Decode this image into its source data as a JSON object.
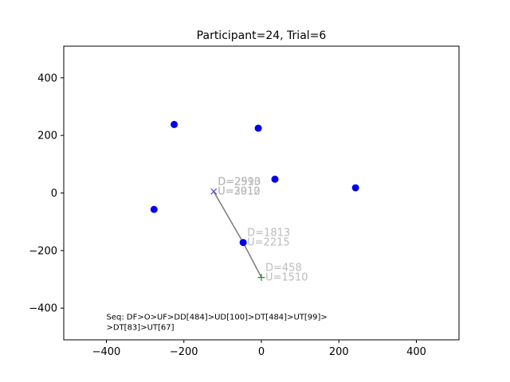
{
  "chart_data": {
    "type": "scatter",
    "title": "Participant=24, Trial=6",
    "xlabel": "",
    "ylabel": "",
    "xlim": [
      -510,
      510
    ],
    "ylim": [
      -510,
      510
    ],
    "xticks": [
      -400,
      -200,
      0,
      200,
      400
    ],
    "yticks": [
      -400,
      -200,
      0,
      200,
      400
    ],
    "grid": false,
    "targets": [
      {
        "x": -225,
        "y": 238
      },
      {
        "x": -8,
        "y": 225
      },
      {
        "x": 35,
        "y": 48
      },
      {
        "x": 243,
        "y": 18
      },
      {
        "x": -277,
        "y": -57
      },
      {
        "x": -47,
        "y": -172
      }
    ],
    "path": [
      {
        "x": -123,
        "y": 5
      },
      {
        "x": -47,
        "y": -172
      },
      {
        "x": 0,
        "y": -293
      }
    ],
    "end_marker": {
      "x": -123,
      "y": 5,
      "symbol": "×"
    },
    "start_marker": {
      "x": 0,
      "y": -293,
      "symbol": "+"
    },
    "annotations": [
      {
        "x": -123,
        "y": 5,
        "lines": [
          "D=2590",
          "U=2910"
        ]
      },
      {
        "x": -123,
        "y": 5,
        "lines": [
          "D=2913",
          "U=3012"
        ]
      },
      {
        "x": -47,
        "y": -172,
        "lines": [
          "D=1813",
          "U=2215"
        ]
      },
      {
        "x": 0,
        "y": -293,
        "lines": [
          "D=458",
          "U=1510"
        ]
      }
    ],
    "sequence_text": {
      "x": -400,
      "y": -440,
      "lines": [
        "Seq: DF>O>UF>DD[484]>UD[100]>DT[484]>UT[99]>",
        ">DT[83]>UT[67]"
      ]
    },
    "colors": {
      "target": "#0000ee",
      "path": "#808080",
      "annotation": "#b0b0b0",
      "end_marker": "#4b4bd6",
      "start_marker": "#228b22"
    }
  }
}
